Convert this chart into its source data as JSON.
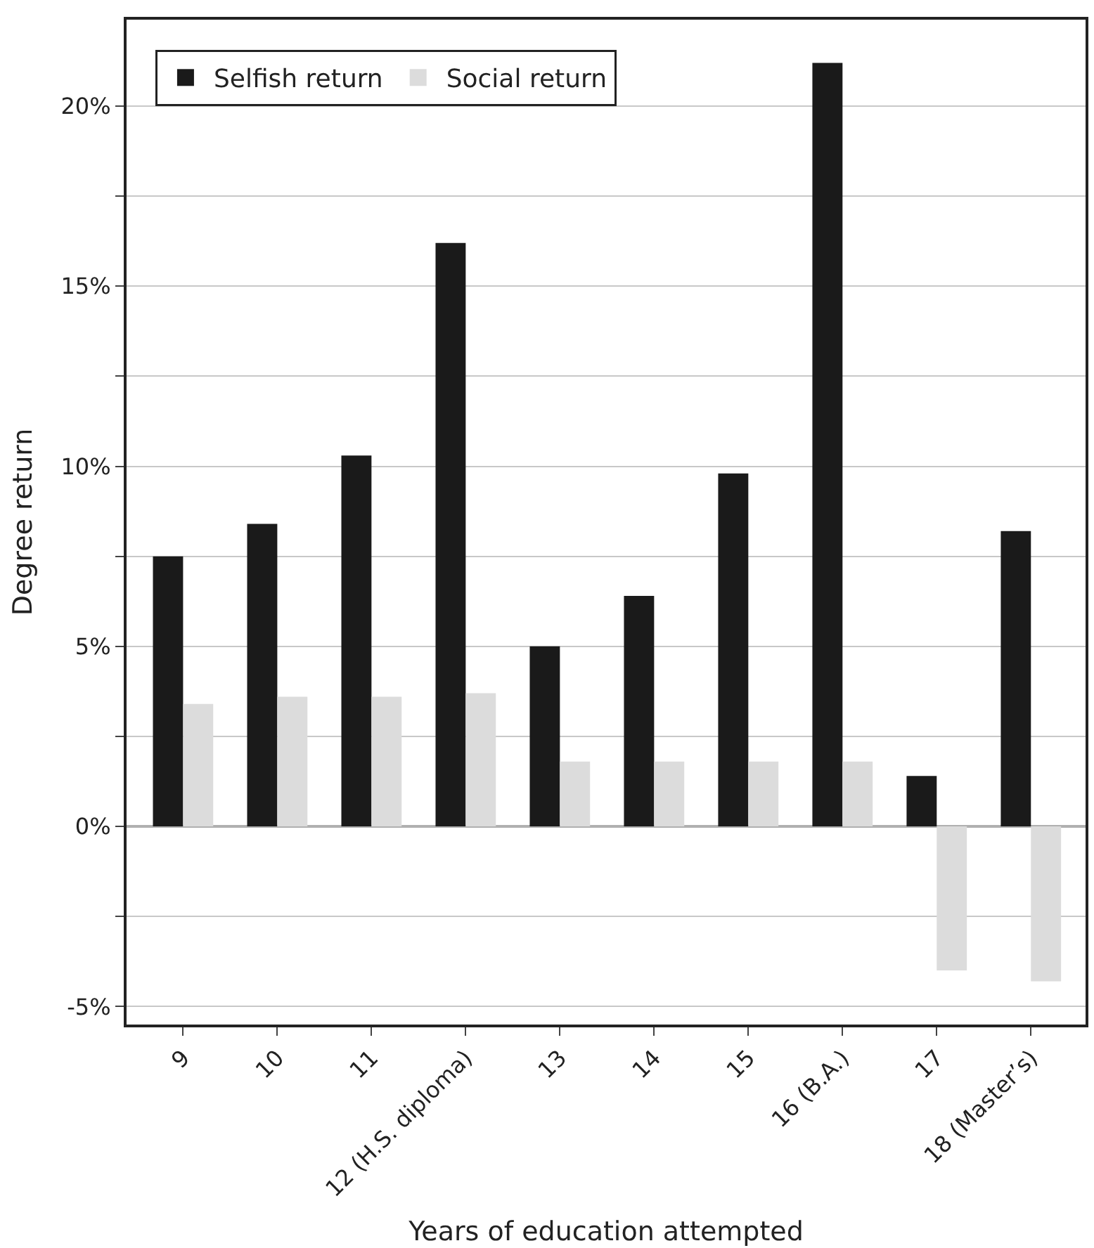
{
  "chart_data": {
    "type": "bar",
    "xlabel": "Years of education attempted",
    "ylabel": "Degree return",
    "categories": [
      "9",
      "10",
      "11",
      "12 (H.S. diploma)",
      "13",
      "14",
      "15",
      "16 (B.A.)",
      "17",
      "18 (Master’s)"
    ],
    "series": [
      {
        "name": "Selfish return",
        "color": "#1a1a1a",
        "values": [
          7.5,
          8.4,
          10.3,
          16.2,
          5.0,
          6.4,
          9.8,
          21.2,
          1.4,
          8.2
        ]
      },
      {
        "name": "Social return",
        "color": "#dcdcdc",
        "values": [
          3.4,
          3.6,
          3.6,
          3.7,
          1.8,
          1.8,
          1.8,
          1.8,
          -4.0,
          -4.3
        ]
      }
    ],
    "ylim": [
      -5.5,
      22.4
    ],
    "yticks": [
      {
        "value": -5,
        "label": "-5%"
      },
      {
        "value": -2.5,
        "label": null
      },
      {
        "value": 0,
        "label": "0%"
      },
      {
        "value": 2.5,
        "label": null
      },
      {
        "value": 5,
        "label": "5%"
      },
      {
        "value": 7.5,
        "label": null
      },
      {
        "value": 10,
        "label": "10%"
      },
      {
        "value": 12.5,
        "label": null
      },
      {
        "value": 15,
        "label": "15%"
      },
      {
        "value": 17.5,
        "label": null
      },
      {
        "value": 20,
        "label": "20%"
      }
    ],
    "grid": "y",
    "legend": "top left"
  }
}
